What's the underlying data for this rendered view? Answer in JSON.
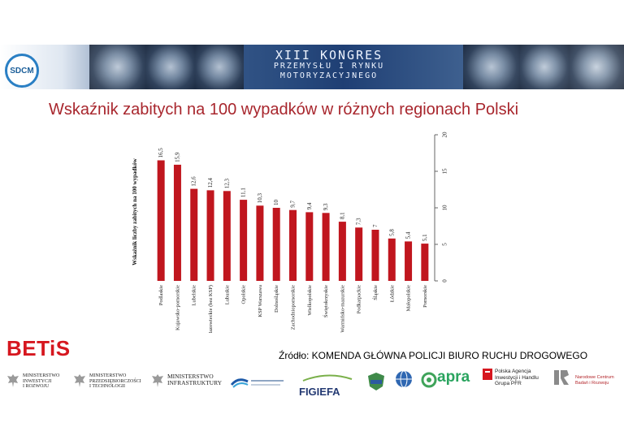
{
  "header": {
    "logo_text": "SDCM",
    "congress_line1": "XIII KONGRES",
    "congress_line2": "PRZEMYSŁU I RYNKU",
    "congress_line3": "MOTORYZACYJNEGO"
  },
  "slide": {
    "title": "Wskaźnik zabitych na 100 wypadków w różnych regionach Polski",
    "betis": "BETiS",
    "source": "Źródło: KOMENDA GŁÓWNA POLICJI BIURO RUCHU DROGOWEGO"
  },
  "footer": {
    "ministry1": "MINISTERSTWO\nINWESTYCJI\nI ROZWOJU",
    "ministry2": "MINISTERSTWO\nPRZEDSIĘBIORCZOŚCI\nI TECHNOLOGII",
    "ministry3": "MINISTERSTWO\nINFRASTRUKTURY",
    "figiefa": "FIGIEFA",
    "apra": "apra",
    "paih": "Polska Agencja\nInwestycji i Handlu\nGrupa PFR",
    "ncbr": "Narodowe Centrum\nBadań i Rozwoju"
  },
  "colors": {
    "bar": "#c0161e",
    "title": "#a8262d",
    "betis": "#d6171f"
  },
  "chart_data": {
    "type": "bar",
    "orientation": "vertical-rotated",
    "categories": [
      "Podlaskie",
      "Kujawsko-pomorskie",
      "Lubelskie",
      "Mazowieckie (bez KSP)",
      "Lubuskie",
      "Opolskie",
      "KSP Warszawa",
      "Dolnośląskie",
      "Zachodniopomorskie",
      "Wielkopolskie",
      "Świętokrzyskie",
      "Warmińsko-mazurskie",
      "Podkarpackie",
      "Śląskie",
      "Łódzkie",
      "Małopolskie",
      "Pomorskie"
    ],
    "values": [
      16.5,
      15.9,
      12.6,
      12.4,
      12.3,
      11.1,
      10.3,
      10,
      9.7,
      9.4,
      9.3,
      8.1,
      7.3,
      7,
      5.8,
      5.4,
      5.1
    ],
    "value_labels": [
      "16,5",
      "15,9",
      "12,6",
      "12,4",
      "12,3",
      "11,1",
      "10,3",
      "10",
      "9,7",
      "9,4",
      "9,3",
      "8,1",
      "7,3",
      "7",
      "5,8",
      "5,4",
      "5,1"
    ],
    "ylabel": "Wskaźnik liczby zabitych na 100 wypadków",
    "yticks": [
      0,
      5,
      10,
      15,
      20
    ],
    "ylim": [
      0,
      20
    ],
    "axis_side": "right",
    "grid": false,
    "legend": "none"
  }
}
